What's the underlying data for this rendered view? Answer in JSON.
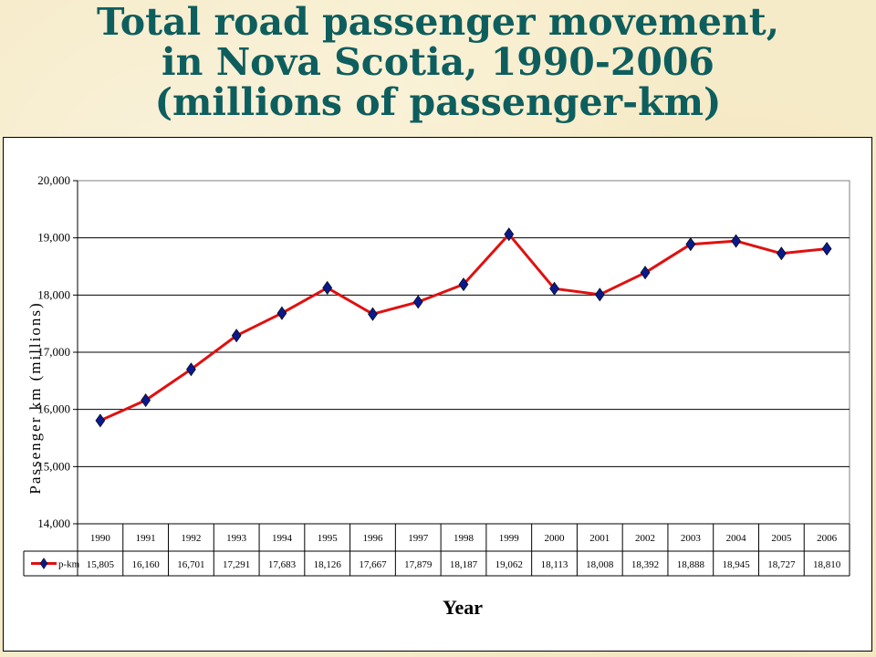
{
  "title": {
    "line1": "Total road passenger movement,",
    "line2": "in Nova Scotia, 1990-2006",
    "line3": "(millions of passenger-km)"
  },
  "chart_data": {
    "type": "line",
    "title": "Total road passenger movement, in Nova Scotia, 1990-2006 (millions of passenger-km)",
    "xlabel": "Year",
    "ylabel": "Passenger km (millions)",
    "ylim": [
      14000,
      20000
    ],
    "yticks": [
      "14,000",
      "15,000",
      "16,000",
      "17,000",
      "18,000",
      "19,000",
      "20,000"
    ],
    "grid": true,
    "legend_placement": "data-table",
    "categories": [
      "1990",
      "1991",
      "1992",
      "1993",
      "1994",
      "1995",
      "1996",
      "1997",
      "1998",
      "1999",
      "2000",
      "2001",
      "2002",
      "2003",
      "2004",
      "2005",
      "2006"
    ],
    "series": [
      {
        "name": "p-km",
        "line_color": "#e01010",
        "marker_color": "#0a1a8a",
        "values": [
          15805,
          16160,
          16701,
          17291,
          17683,
          18126,
          17667,
          17879,
          18187,
          19062,
          18113,
          18008,
          18392,
          18888,
          18945,
          18727,
          18810
        ],
        "labels": [
          "15,805",
          "16,160",
          "16,701",
          "17,291",
          "17,683",
          "18,126",
          "17,667",
          "17,879",
          "18,187",
          "19,062",
          "18,113",
          "18,008",
          "18,392",
          "18,888",
          "18,945",
          "18,727",
          "18,810"
        ]
      }
    ]
  }
}
